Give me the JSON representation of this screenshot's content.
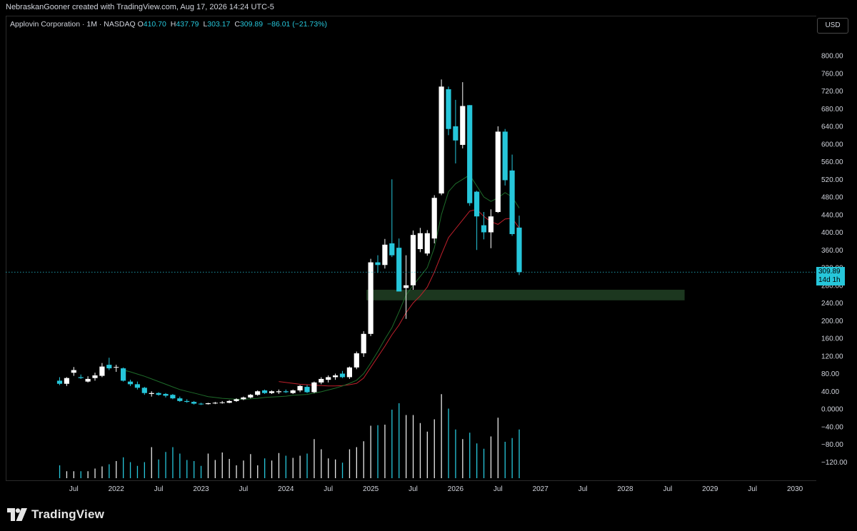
{
  "credit": "NebraskanGooner created with TradingView.com, Aug 17, 2026 14:24 UTC-5",
  "legend": {
    "symbol": "Applovin Corporation · 1M · NASDAQ",
    "o_label": "O",
    "o_value": "410.70",
    "h_label": "H",
    "h_value": "437.79",
    "l_label": "L",
    "l_value": "303.17",
    "c_label": "C",
    "c_value": "309.89",
    "change": "−86.01 (−21.73%)"
  },
  "currency_button": "USD",
  "last_price_tag": {
    "price": "309.89",
    "countdown": "14d 1h"
  },
  "brand": "TradingView",
  "colors": {
    "up": "#ffffff",
    "down": "#26c6da",
    "ema_fast": "#1e6b2a",
    "ema_slow": "#c0202c",
    "zone": "#1f3d22",
    "volume": "#26c6da",
    "background": "#000000"
  },
  "chart_data": {
    "type": "candlestick",
    "timeframe": "1M",
    "y_axis_ticks": [
      "800.00",
      "760.00",
      "720.00",
      "680.00",
      "640.00",
      "600.00",
      "560.00",
      "520.00",
      "480.00",
      "440.00",
      "400.00",
      "360.00",
      "320.00",
      "280.00",
      "240.00",
      "200.00",
      "160.00",
      "120.00",
      "80.00",
      "40.00",
      "0.0000",
      "−40.00",
      "−80.00",
      "−120.00"
    ],
    "x_axis_ticks": [
      "Jul",
      "2022",
      "Jul",
      "2023",
      "Jul",
      "2024",
      "Jul",
      "2025",
      "Jul",
      "2026",
      "Jul",
      "2027",
      "Jul",
      "2028",
      "Jul",
      "2029",
      "Jul",
      "2030"
    ],
    "ylim": [
      -140,
      820
    ],
    "start_month": "2021-05",
    "candles": [
      {
        "o": 64,
        "h": 72,
        "l": 54,
        "c": 57
      },
      {
        "o": 57,
        "h": 72,
        "l": 52,
        "c": 70
      },
      {
        "o": 82,
        "h": 95,
        "l": 75,
        "c": 88
      },
      {
        "o": 72,
        "h": 78,
        "l": 68,
        "c": 70
      },
      {
        "o": 62,
        "h": 74,
        "l": 60,
        "c": 68
      },
      {
        "o": 70,
        "h": 82,
        "l": 64,
        "c": 76
      },
      {
        "o": 75,
        "h": 104,
        "l": 72,
        "c": 96
      },
      {
        "o": 100,
        "h": 116,
        "l": 88,
        "c": 92
      },
      {
        "o": 95,
        "h": 100,
        "l": 84,
        "c": 95
      },
      {
        "o": 92,
        "h": 94,
        "l": 62,
        "c": 64
      },
      {
        "o": 62,
        "h": 66,
        "l": 52,
        "c": 56
      },
      {
        "o": 56,
        "h": 62,
        "l": 44,
        "c": 48
      },
      {
        "o": 48,
        "h": 50,
        "l": 32,
        "c": 36
      },
      {
        "o": 34,
        "h": 40,
        "l": 28,
        "c": 36
      },
      {
        "o": 36,
        "h": 38,
        "l": 30,
        "c": 32
      },
      {
        "o": 34,
        "h": 36,
        "l": 26,
        "c": 30
      },
      {
        "o": 32,
        "h": 34,
        "l": 22,
        "c": 24
      },
      {
        "o": 24,
        "h": 28,
        "l": 16,
        "c": 18
      },
      {
        "o": 18,
        "h": 22,
        "l": 14,
        "c": 16
      },
      {
        "o": 16,
        "h": 18,
        "l": 10,
        "c": 12
      },
      {
        "o": 12,
        "h": 14,
        "l": 9,
        "c": 11
      },
      {
        "o": 11,
        "h": 14,
        "l": 10,
        "c": 13
      },
      {
        "o": 13,
        "h": 16,
        "l": 11,
        "c": 14
      },
      {
        "o": 14,
        "h": 18,
        "l": 12,
        "c": 15
      },
      {
        "o": 14,
        "h": 20,
        "l": 13,
        "c": 18
      },
      {
        "o": 18,
        "h": 24,
        "l": 16,
        "c": 22
      },
      {
        "o": 22,
        "h": 28,
        "l": 20,
        "c": 26
      },
      {
        "o": 26,
        "h": 34,
        "l": 24,
        "c": 32
      },
      {
        "o": 32,
        "h": 42,
        "l": 30,
        "c": 40
      },
      {
        "o": 42,
        "h": 44,
        "l": 34,
        "c": 36
      },
      {
        "o": 36,
        "h": 42,
        "l": 34,
        "c": 40
      },
      {
        "o": 38,
        "h": 44,
        "l": 34,
        "c": 40
      },
      {
        "o": 40,
        "h": 44,
        "l": 36,
        "c": 38
      },
      {
        "o": 36,
        "h": 44,
        "l": 34,
        "c": 42
      },
      {
        "o": 42,
        "h": 54,
        "l": 38,
        "c": 52
      },
      {
        "o": 50,
        "h": 54,
        "l": 36,
        "c": 38
      },
      {
        "o": 38,
        "h": 62,
        "l": 36,
        "c": 60
      },
      {
        "o": 60,
        "h": 72,
        "l": 56,
        "c": 68
      },
      {
        "o": 66,
        "h": 76,
        "l": 60,
        "c": 72
      },
      {
        "o": 72,
        "h": 80,
        "l": 66,
        "c": 76
      },
      {
        "o": 80,
        "h": 86,
        "l": 70,
        "c": 72
      },
      {
        "o": 72,
        "h": 96,
        "l": 68,
        "c": 94
      },
      {
        "o": 94,
        "h": 130,
        "l": 90,
        "c": 126
      },
      {
        "o": 126,
        "h": 176,
        "l": 118,
        "c": 170
      },
      {
        "o": 170,
        "h": 340,
        "l": 165,
        "c": 332
      },
      {
        "o": 332,
        "h": 348,
        "l": 308,
        "c": 326
      },
      {
        "o": 326,
        "h": 385,
        "l": 318,
        "c": 372
      },
      {
        "o": 375,
        "h": 520,
        "l": 344,
        "c": 348
      },
      {
        "o": 365,
        "h": 386,
        "l": 270,
        "c": 266
      },
      {
        "o": 274,
        "h": 348,
        "l": 204,
        "c": 280
      },
      {
        "o": 280,
        "h": 404,
        "l": 270,
        "c": 394
      },
      {
        "o": 362,
        "h": 410,
        "l": 355,
        "c": 398
      },
      {
        "o": 352,
        "h": 405,
        "l": 347,
        "c": 398
      },
      {
        "o": 386,
        "h": 484,
        "l": 375,
        "c": 478
      },
      {
        "o": 488,
        "h": 746,
        "l": 484,
        "c": 730
      },
      {
        "o": 724,
        "h": 730,
        "l": 620,
        "c": 634
      },
      {
        "o": 640,
        "h": 700,
        "l": 556,
        "c": 608
      },
      {
        "o": 598,
        "h": 740,
        "l": 590,
        "c": 686
      },
      {
        "o": 688,
        "h": 688,
        "l": 460,
        "c": 466
      },
      {
        "o": 492,
        "h": 494,
        "l": 360,
        "c": 436
      },
      {
        "o": 416,
        "h": 446,
        "l": 384,
        "c": 400
      },
      {
        "o": 400,
        "h": 452,
        "l": 364,
        "c": 436
      },
      {
        "o": 446,
        "h": 640,
        "l": 444,
        "c": 628
      },
      {
        "o": 628,
        "h": 634,
        "l": 506,
        "c": 518
      },
      {
        "o": 540,
        "h": 576,
        "l": 392,
        "c": 396
      },
      {
        "o": 410.7,
        "h": 437.79,
        "l": 303.17,
        "c": 309.89
      }
    ],
    "volume_relative": [
      0.24,
      0.13,
      0.13,
      0.13,
      0.13,
      0.18,
      0.22,
      0.26,
      0.32,
      0.39,
      0.3,
      0.23,
      0.3,
      0.58,
      0.35,
      0.49,
      0.58,
      0.46,
      0.34,
      0.32,
      0.23,
      0.46,
      0.34,
      0.48,
      0.36,
      0.24,
      0.33,
      0.45,
      0.24,
      0.37,
      0.33,
      0.47,
      0.42,
      0.38,
      0.42,
      0.46,
      0.73,
      0.54,
      0.37,
      0.35,
      0.29,
      0.54,
      0.58,
      0.69,
      0.98,
      0.99,
      1.0,
      1.28,
      1.4,
      1.18,
      1.18,
      1.03,
      0.87,
      1.1,
      1.57,
      1.3,
      0.91,
      0.73,
      0.85,
      0.65,
      0.55,
      0.78,
      1.13,
      0.68,
      0.75,
      0.91
    ],
    "ema_fast": [
      null,
      null,
      null,
      null,
      null,
      null,
      null,
      null,
      null,
      88,
      84,
      79,
      74,
      68,
      62,
      56,
      50,
      44,
      40,
      36,
      32,
      28,
      26,
      24,
      23,
      22,
      22,
      23,
      24,
      26,
      27,
      28,
      29,
      31,
      32,
      33,
      36,
      39,
      43,
      47,
      52,
      58,
      65,
      80,
      104,
      130,
      158,
      184,
      220,
      258,
      280,
      300,
      320,
      365,
      440,
      492,
      510,
      520,
      530,
      505,
      480,
      470,
      478,
      490,
      480,
      455
    ],
    "ema_slow": [
      null,
      null,
      null,
      null,
      null,
      null,
      null,
      null,
      null,
      null,
      null,
      null,
      null,
      null,
      null,
      null,
      null,
      null,
      null,
      null,
      null,
      null,
      null,
      null,
      null,
      null,
      null,
      null,
      null,
      null,
      null,
      62,
      60,
      58,
      56,
      55,
      54,
      53,
      52,
      52,
      53,
      55,
      58,
      70,
      94,
      118,
      142,
      168,
      190,
      218,
      240,
      256,
      276,
      310,
      350,
      388,
      408,
      428,
      448,
      452,
      436,
      424,
      418,
      430,
      432,
      410
    ],
    "support_zone": {
      "y_low": 246,
      "y_high": 270,
      "from_index": 44,
      "to_index": 89
    }
  }
}
